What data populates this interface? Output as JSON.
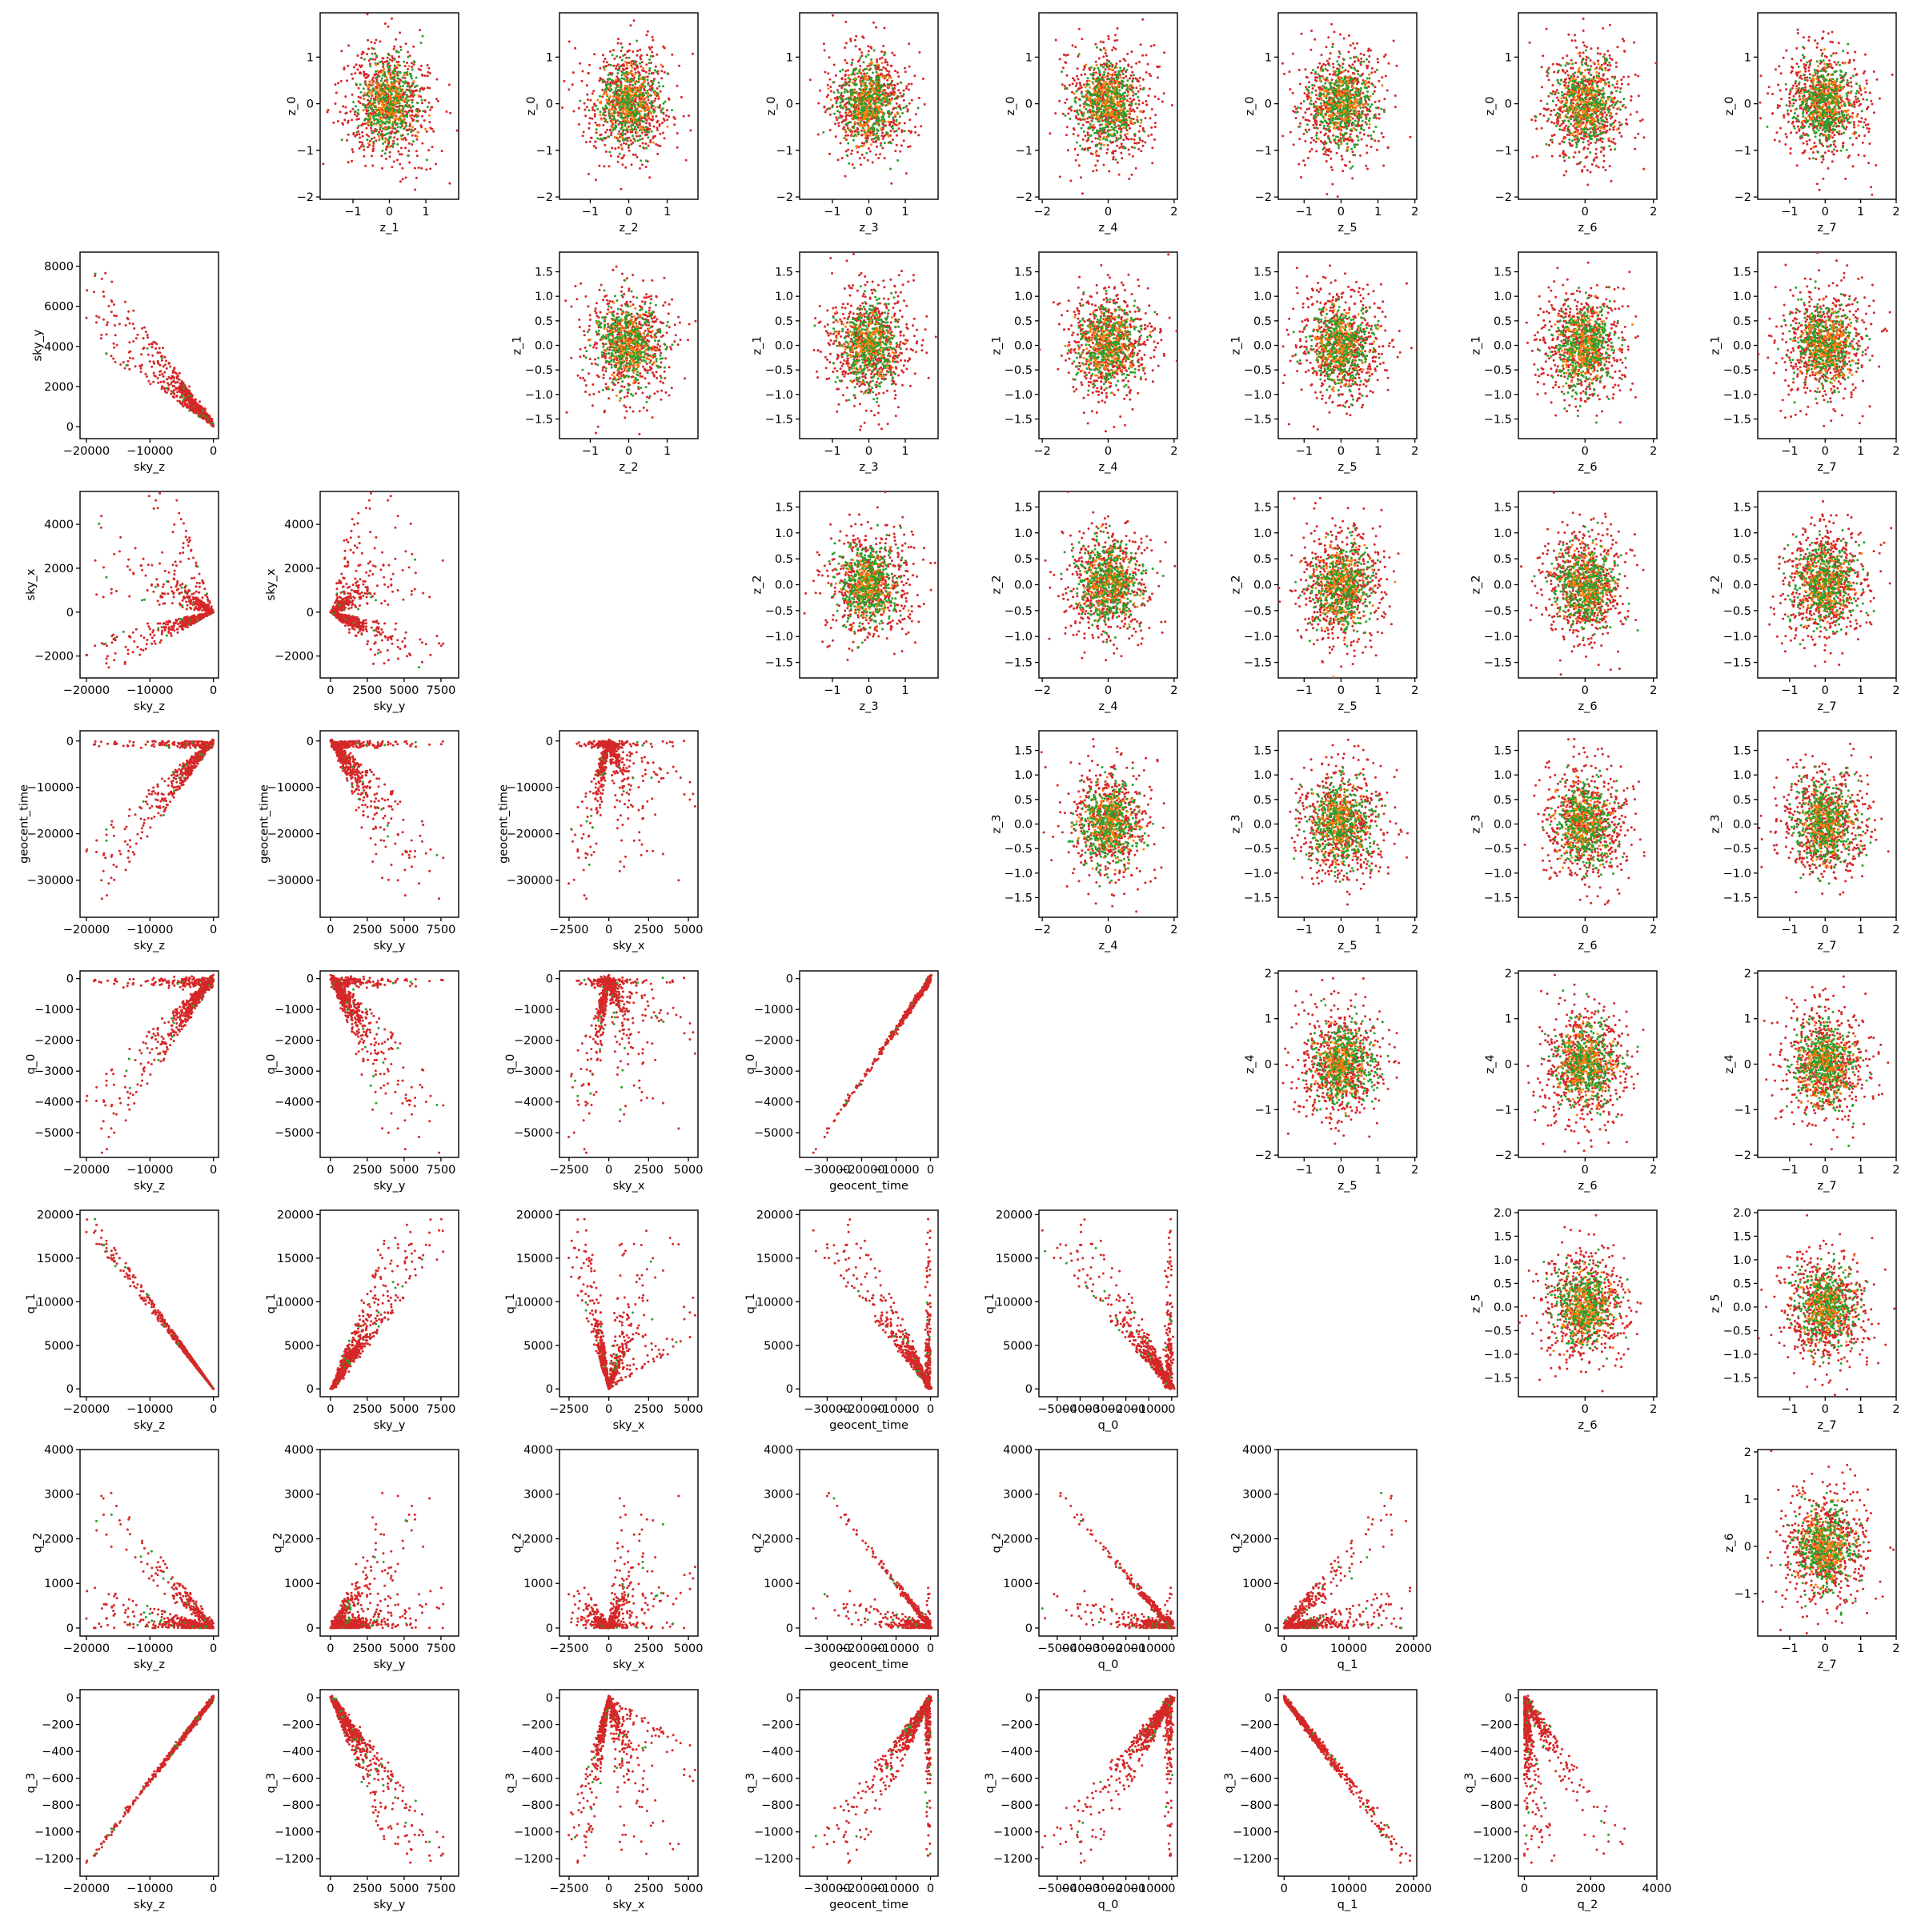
{
  "chart_data": {
    "type": "scatter",
    "layout": "pair-plot grid 8 rows x 8 columns; lower triangle = sky/geocent/q parameter pairs, upper triangle = z latent pairs",
    "colors": {
      "series_a": "#2ca02c",
      "series_b": "#ff7f0e",
      "series_c": "#d62728"
    },
    "grid": false,
    "variables": {
      "sky_z": {
        "ticks": [
          -20000,
          -10000,
          0
        ],
        "range": [
          -21000,
          800
        ]
      },
      "sky_y": {
        "ticks": [
          0,
          2500,
          5000,
          7500
        ],
        "range": [
          -700,
          8700
        ]
      },
      "sky_x": {
        "ticks": [
          -2500,
          0,
          2500,
          5000
        ],
        "range": [
          -3100,
          5600
        ]
      },
      "geocent_time": {
        "ticks": [
          -30000,
          -20000,
          -10000,
          0
        ],
        "range": [
          -38000,
          2200
        ]
      },
      "q_0": {
        "ticks": [
          -5000,
          -4000,
          -3000,
          -2000,
          -1000,
          0
        ],
        "range": [
          -5800,
          250
        ]
      },
      "q_1": {
        "ticks": [
          0,
          5000,
          10000,
          15000,
          20000
        ],
        "range": [
          -900,
          20500
        ],
        "xticks": [
          0,
          10000,
          20000
        ]
      },
      "q_2": {
        "ticks": [
          0,
          1000,
          2000,
          3000,
          4000
        ],
        "range": [
          -180,
          4000
        ],
        "xticks": [
          0,
          2000,
          4000
        ]
      },
      "q_3": {
        "ticks": [
          -1200,
          -1000,
          -800,
          -600,
          -400,
          -200,
          0
        ],
        "range": [
          -1330,
          60
        ]
      }
    },
    "z_axes": {
      "z_0": {
        "ticks": [
          -2,
          -1,
          0,
          1
        ],
        "range": [
          -2.05,
          1.95
        ]
      },
      "z_1": {
        "ticks": [
          -1.5,
          -1.0,
          -0.5,
          0.0,
          0.5,
          1.0,
          1.5
        ],
        "range": [
          -1.9,
          1.9
        ],
        "xticks": [
          -1,
          0,
          1
        ],
        "xrange": [
          -1.9,
          1.9
        ]
      },
      "z_2": {
        "ticks": [
          -1.5,
          -1.0,
          -0.5,
          0.0,
          0.5,
          1.0,
          1.5
        ],
        "range": [
          -1.8,
          1.8
        ],
        "xticks": [
          -1,
          0,
          1
        ],
        "xrange": [
          -1.8,
          1.8
        ]
      },
      "z_3": {
        "ticks": [
          -1.5,
          -1.0,
          -0.5,
          0.0,
          0.5,
          1.0,
          1.5
        ],
        "range": [
          -1.9,
          1.9
        ],
        "xticks": [
          -1,
          0,
          1
        ],
        "xrange": [
          -1.9,
          1.9
        ]
      },
      "z_4": {
        "ticks": [
          -2,
          -1,
          0,
          1,
          2
        ],
        "range": [
          -2.1,
          2.1
        ],
        "xticks": [
          -2,
          0,
          2
        ],
        "xrange": [
          -2.1,
          2.1
        ]
      },
      "z_5": {
        "ticks": [
          -1.5,
          -1.0,
          -0.5,
          0.0,
          0.5,
          1.0,
          1.5,
          2.0
        ],
        "range": [
          -1.9,
          2.05
        ],
        "xticks": [
          -1,
          0,
          1,
          2
        ],
        "xrange": [
          -1.7,
          2.05
        ]
      },
      "z_6": {
        "ticks": [
          -1,
          0,
          1,
          2
        ],
        "range": [
          -1.95,
          2.1
        ],
        "xticks": [
          0,
          2
        ],
        "xrange": [
          -1.95,
          2.1
        ]
      },
      "z_7": {
        "xticks": [
          -1,
          0,
          1,
          2
        ],
        "xrange": [
          -1.9,
          2.0
        ]
      }
    },
    "tick_text": {
      "-30000": "−30000",
      "-20000": "−20000",
      "-10000": "−10000",
      "-5000": "−5000",
      "-4000": "−4000",
      "-3000": "−3000",
      "-2500": "−2500",
      "-2000": "−2000",
      "-1200": "−1200",
      "-1000": "−1000",
      "-800": "−800",
      "-600": "−600",
      "-400": "−400",
      "-200": "−200",
      "-2": "−2",
      "-1.5": "−1.5",
      "-1": "−1",
      "-1.0": "−1.0",
      "-0.5": "−0.5",
      "0.0": "0.0",
      "0.5": "0.5",
      "1.0": "1.0",
      "1.5": "1.5",
      "2.0": "2.0"
    },
    "panels": [
      {
        "row": 0,
        "col": 1,
        "x": "z_1",
        "y": "z_0"
      },
      {
        "row": 0,
        "col": 2,
        "x": "z_2",
        "y": "z_0"
      },
      {
        "row": 0,
        "col": 3,
        "x": "z_3",
        "y": "z_0"
      },
      {
        "row": 0,
        "col": 4,
        "x": "z_4",
        "y": "z_0"
      },
      {
        "row": 0,
        "col": 5,
        "x": "z_5",
        "y": "z_0"
      },
      {
        "row": 0,
        "col": 6,
        "x": "z_6",
        "y": "z_0"
      },
      {
        "row": 0,
        "col": 7,
        "x": "z_7",
        "y": "z_0"
      },
      {
        "row": 1,
        "col": 0,
        "x": "sky_z",
        "y": "sky_y",
        "yticks": [
          0,
          2000,
          4000,
          6000,
          8000
        ],
        "yrange": [
          -600,
          8700
        ],
        "pattern": "skyy_skyz"
      },
      {
        "row": 1,
        "col": 2,
        "x": "z_2",
        "y": "z_1"
      },
      {
        "row": 1,
        "col": 3,
        "x": "z_3",
        "y": "z_1"
      },
      {
        "row": 1,
        "col": 4,
        "x": "z_4",
        "y": "z_1"
      },
      {
        "row": 1,
        "col": 5,
        "x": "z_5",
        "y": "z_1"
      },
      {
        "row": 1,
        "col": 6,
        "x": "z_6",
        "y": "z_1"
      },
      {
        "row": 1,
        "col": 7,
        "x": "z_7",
        "y": "z_1"
      },
      {
        "row": 2,
        "col": 0,
        "x": "sky_z",
        "y": "sky_x",
        "yticks": [
          -2000,
          0,
          2000,
          4000
        ],
        "yrange": [
          -3000,
          5500
        ],
        "pattern": "skyx_skyz"
      },
      {
        "row": 2,
        "col": 1,
        "x": "sky_y",
        "y": "sky_x",
        "yticks": [
          -2000,
          0,
          2000,
          4000
        ],
        "yrange": [
          -3000,
          5500
        ],
        "pattern": "skyx_skyy"
      },
      {
        "row": 2,
        "col": 3,
        "x": "z_3",
        "y": "z_2"
      },
      {
        "row": 2,
        "col": 4,
        "x": "z_4",
        "y": "z_2"
      },
      {
        "row": 2,
        "col": 5,
        "x": "z_5",
        "y": "z_2"
      },
      {
        "row": 2,
        "col": 6,
        "x": "z_6",
        "y": "z_2"
      },
      {
        "row": 2,
        "col": 7,
        "x": "z_7",
        "y": "z_2"
      },
      {
        "row": 3,
        "col": 0,
        "x": "sky_z",
        "y": "geocent_time",
        "pattern": "geo_skyz"
      },
      {
        "row": 3,
        "col": 1,
        "x": "sky_y",
        "y": "geocent_time",
        "pattern": "geo_skyy"
      },
      {
        "row": 3,
        "col": 2,
        "x": "sky_x",
        "y": "geocent_time",
        "pattern": "geo_skyx"
      },
      {
        "row": 3,
        "col": 4,
        "x": "z_4",
        "y": "z_3"
      },
      {
        "row": 3,
        "col": 5,
        "x": "z_5",
        "y": "z_3"
      },
      {
        "row": 3,
        "col": 6,
        "x": "z_6",
        "y": "z_3"
      },
      {
        "row": 3,
        "col": 7,
        "x": "z_7",
        "y": "z_3"
      },
      {
        "row": 4,
        "col": 0,
        "x": "sky_z",
        "y": "q_0",
        "pattern": "q0_skyz"
      },
      {
        "row": 4,
        "col": 1,
        "x": "sky_y",
        "y": "q_0",
        "pattern": "q0_skyy"
      },
      {
        "row": 4,
        "col": 2,
        "x": "sky_x",
        "y": "q_0",
        "pattern": "q0_skyx"
      },
      {
        "row": 4,
        "col": 3,
        "x": "geocent_time",
        "y": "q_0",
        "pattern": "q0_geo"
      },
      {
        "row": 4,
        "col": 5,
        "x": "z_5",
        "y": "z_4",
        "yticks": [
          -2,
          -1,
          0,
          1,
          2
        ],
        "yrange": [
          -2.05,
          2.05
        ]
      },
      {
        "row": 4,
        "col": 6,
        "x": "z_6",
        "y": "z_4",
        "yticks": [
          -2,
          -1,
          0,
          1,
          2
        ],
        "yrange": [
          -2.05,
          2.05
        ]
      },
      {
        "row": 4,
        "col": 7,
        "x": "z_7",
        "y": "z_4",
        "yticks": [
          -2,
          -1,
          0,
          1,
          2
        ],
        "yrange": [
          -2.05,
          2.05
        ]
      },
      {
        "row": 5,
        "col": 0,
        "x": "sky_z",
        "y": "q_1",
        "pattern": "q1_skyz"
      },
      {
        "row": 5,
        "col": 1,
        "x": "sky_y",
        "y": "q_1",
        "pattern": "q1_skyy"
      },
      {
        "row": 5,
        "col": 2,
        "x": "sky_x",
        "y": "q_1",
        "pattern": "q1_skyx"
      },
      {
        "row": 5,
        "col": 3,
        "x": "geocent_time",
        "y": "q_1",
        "pattern": "q1_geo"
      },
      {
        "row": 5,
        "col": 4,
        "x": "q_0",
        "y": "q_1",
        "pattern": "q1_q0"
      },
      {
        "row": 5,
        "col": 6,
        "x": "z_6",
        "y": "z_5"
      },
      {
        "row": 5,
        "col": 7,
        "x": "z_7",
        "y": "z_5"
      },
      {
        "row": 6,
        "col": 0,
        "x": "sky_z",
        "y": "q_2",
        "pattern": "q2_skyz"
      },
      {
        "row": 6,
        "col": 1,
        "x": "sky_y",
        "y": "q_2",
        "pattern": "q2_skyy"
      },
      {
        "row": 6,
        "col": 2,
        "x": "sky_x",
        "y": "q_2",
        "pattern": "q2_skyx"
      },
      {
        "row": 6,
        "col": 3,
        "x": "geocent_time",
        "y": "q_2",
        "pattern": "q2_geo"
      },
      {
        "row": 6,
        "col": 4,
        "x": "q_0",
        "y": "q_2",
        "pattern": "q2_q0"
      },
      {
        "row": 6,
        "col": 5,
        "x": "q_1",
        "y": "q_2",
        "pattern": "q2_q1"
      },
      {
        "row": 6,
        "col": 7,
        "x": "z_7",
        "y": "z_6",
        "yticks": [
          -1,
          0,
          1,
          2
        ],
        "yrange": [
          -1.9,
          2.05
        ]
      },
      {
        "row": 7,
        "col": 0,
        "x": "sky_z",
        "y": "q_3",
        "pattern": "q3_skyz"
      },
      {
        "row": 7,
        "col": 1,
        "x": "sky_y",
        "y": "q_3",
        "pattern": "q3_skyy"
      },
      {
        "row": 7,
        "col": 2,
        "x": "sky_x",
        "y": "q_3",
        "pattern": "q3_skyx"
      },
      {
        "row": 7,
        "col": 3,
        "x": "geocent_time",
        "y": "q_3",
        "pattern": "q3_geo"
      },
      {
        "row": 7,
        "col": 4,
        "x": "q_0",
        "y": "q_3",
        "pattern": "q3_q0"
      },
      {
        "row": 7,
        "col": 5,
        "x": "q_1",
        "y": "q_3",
        "pattern": "q3_q1"
      },
      {
        "row": 7,
        "col": 6,
        "x": "q_2",
        "y": "q_3",
        "pattern": "q3_q2"
      }
    ]
  }
}
